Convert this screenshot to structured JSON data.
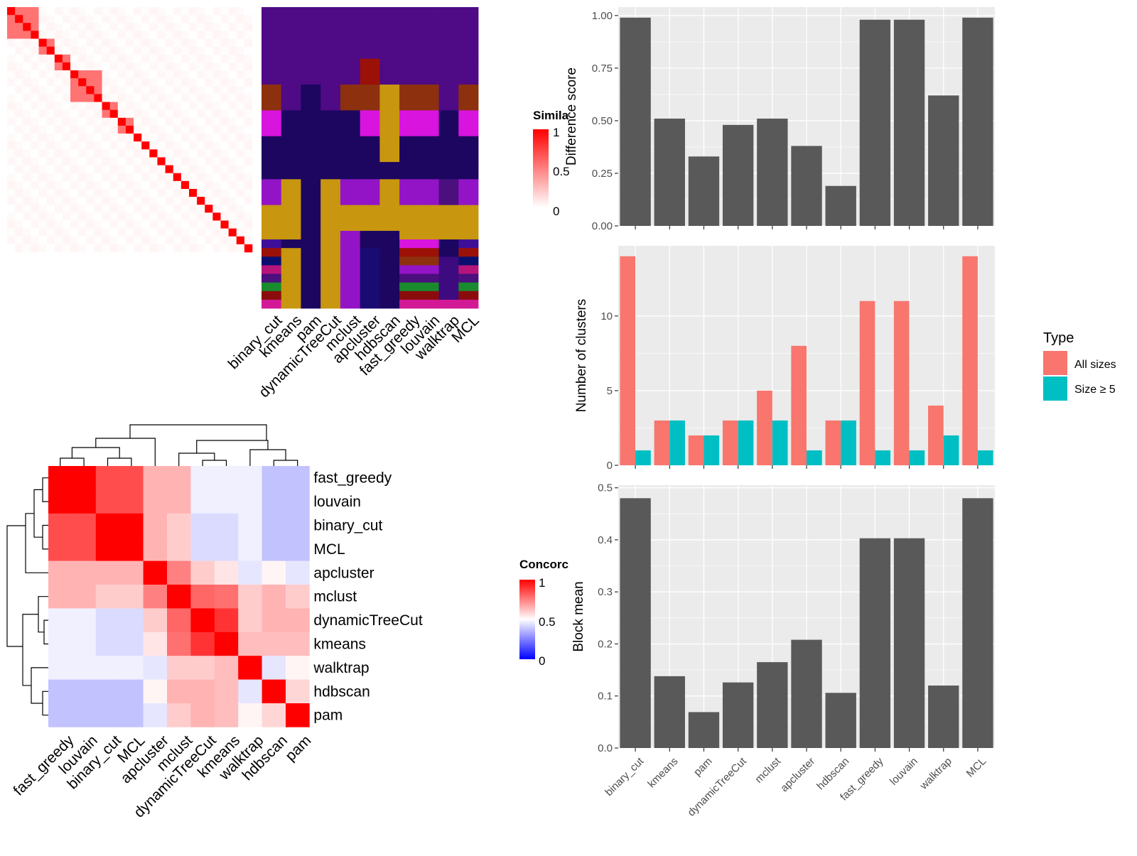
{
  "similarity_legend": {
    "title": "Simila",
    "ticks": [
      "1",
      "0.5",
      "0"
    ]
  },
  "concordance_legend": {
    "title": "Concorc",
    "ticks": [
      "1",
      "0.5",
      "0"
    ]
  },
  "type_legend": {
    "title": "Type",
    "entries": [
      "All sizes",
      "Size ≥ 5"
    ]
  },
  "colors": {
    "bar": "#595959",
    "all_sizes": "#F8766D",
    "size_ge5": "#00BFC4",
    "panel_bg": "#EBEBEB",
    "grid": "#ffffff",
    "heat_high": "#ff0000",
    "heat_mid": "#ffffff",
    "heat_low": "#0000ff"
  },
  "chart_data": [
    {
      "type": "heatmap",
      "name": "similarity",
      "n_cells": 31,
      "value_range": [
        0,
        1
      ],
      "blocks_1based": [
        [
          1,
          4
        ],
        [
          5,
          6
        ],
        [
          7,
          8
        ],
        [
          9,
          12
        ],
        [
          13,
          14
        ],
        [
          15,
          16
        ],
        [
          17,
          17
        ],
        [
          18,
          18
        ],
        [
          19,
          19
        ],
        [
          20,
          20
        ],
        [
          21,
          21
        ],
        [
          22,
          22
        ],
        [
          23,
          23
        ],
        [
          24,
          24
        ],
        [
          25,
          25
        ],
        [
          26,
          26
        ],
        [
          27,
          27
        ],
        [
          28,
          28
        ],
        [
          29,
          29
        ],
        [
          30,
          30
        ],
        [
          31,
          31
        ]
      ],
      "within_block": 0.55,
      "background": 0.04
    },
    {
      "type": "heatmap",
      "name": "cluster_assignments",
      "columns": [
        "binary_cut",
        "kmeans",
        "pam",
        "dynamicTreeCut",
        "mclust",
        "apcluster",
        "hdbscan",
        "fast_greedy",
        "louvain",
        "walktrap",
        "MCL"
      ],
      "row_groups": [
        {
          "rows": 6,
          "colors": [
            "#4f0a85",
            "#4f0a85",
            "#4f0a85",
            "#4f0a85",
            "#4f0a85",
            "#4f0a85",
            "#4f0a85",
            "#4f0a85",
            "#4f0a85",
            "#4f0a85",
            "#4f0a85"
          ]
        },
        {
          "rows": 3,
          "colors": [
            "#4f0a85",
            "#4f0a85",
            "#4f0a85",
            "#4f0a85",
            "#4f0a85",
            "#9b1108",
            "#4f0a85",
            "#4f0a85",
            "#4f0a85",
            "#4f0a85",
            "#4f0a85"
          ]
        },
        {
          "rows": 3,
          "colors": [
            "#8c300d",
            "#4f0a85",
            "#1c0660",
            "#4f0a85",
            "#8c300d",
            "#8c300d",
            "#c8960f",
            "#8c300d",
            "#8c300d",
            "#4f0a85",
            "#8c300d"
          ]
        },
        {
          "rows": 3,
          "colors": [
            "#d814de",
            "#1c0660",
            "#1c0660",
            "#1c0660",
            "#1c0660",
            "#d814de",
            "#c8960f",
            "#d814de",
            "#d814de",
            "#1c0660",
            "#d814de"
          ]
        },
        {
          "rows": 3,
          "colors": [
            "#1c0660",
            "#1c0660",
            "#1c0660",
            "#1c0660",
            "#1c0660",
            "#1c0660",
            "#c8960f",
            "#1c0660",
            "#1c0660",
            "#1c0660",
            "#1c0660"
          ]
        },
        {
          "rows": 2,
          "colors": [
            "#1c0660",
            "#1c0660",
            "#1c0660",
            "#1c0660",
            "#1c0660",
            "#1c0660",
            "#1c0660",
            "#1c0660",
            "#1c0660",
            "#1c0660",
            "#1c0660"
          ]
        },
        {
          "rows": 3,
          "colors": [
            "#9314c6",
            "#c8960f",
            "#1c0660",
            "#c8960f",
            "#9314c6",
            "#9314c6",
            "#c8960f",
            "#9314c6",
            "#9314c6",
            "#4b0f7e",
            "#9314c6"
          ]
        },
        {
          "rows": 3,
          "colors": [
            "#c8960f",
            "#c8960f",
            "#1c0660",
            "#c8960f",
            "#c8960f",
            "#c8960f",
            "#c8960f",
            "#c8960f",
            "#c8960f",
            "#c8960f",
            "#c8960f"
          ]
        },
        {
          "rows": 1,
          "colors": [
            "#c8960f",
            "#c8960f",
            "#1c0660",
            "#c8960f",
            "#9314c6",
            "#1c0660",
            "#1c0660",
            "#c8960f",
            "#c8960f",
            "#c8960f",
            "#c8960f"
          ]
        },
        {
          "rows": 1,
          "colors": [
            "#3d0f99",
            "#1c0660",
            "#1c0660",
            "#c8960f",
            "#9314c6",
            "#1c0660",
            "#1c0660",
            "#d814de",
            "#d814de",
            "#1c0660",
            "#3d0f99"
          ]
        },
        {
          "rows": 1,
          "colors": [
            "#9b1108",
            "#c8960f",
            "#1c0660",
            "#c8960f",
            "#9314c6",
            "#1a0b73",
            "#1c0660",
            "#9b1108",
            "#9b1108",
            "#1c0660",
            "#9b1108"
          ]
        },
        {
          "rows": 1,
          "colors": [
            "#0a0f6e",
            "#c8960f",
            "#1c0660",
            "#c8960f",
            "#9314c6",
            "#1a0b73",
            "#1c0660",
            "#8c300d",
            "#8c300d",
            "#3d0a80",
            "#0a0f6e"
          ]
        },
        {
          "rows": 1,
          "colors": [
            "#b5147a",
            "#c8960f",
            "#1c0660",
            "#c8960f",
            "#9314c6",
            "#1a0b73",
            "#1c0660",
            "#9314c6",
            "#9314c6",
            "#3d0a80",
            "#b5147a"
          ]
        },
        {
          "rows": 1,
          "colors": [
            "#4b0f7e",
            "#c8960f",
            "#1c0660",
            "#c8960f",
            "#9314c6",
            "#1a0b73",
            "#1c0660",
            "#4b0f7e",
            "#4b0f7e",
            "#3d0a80",
            "#4b0f7e"
          ]
        },
        {
          "rows": 1,
          "colors": [
            "#1a8a2e",
            "#c8960f",
            "#1c0660",
            "#c8960f",
            "#9314c6",
            "#1a0b73",
            "#1c0660",
            "#1a8a2e",
            "#1a8a2e",
            "#3d0a80",
            "#1a8a2e"
          ]
        },
        {
          "rows": 1,
          "colors": [
            "#8a0c0c",
            "#c8960f",
            "#1c0660",
            "#c8960f",
            "#9314c6",
            "#1a0b73",
            "#1c0660",
            "#8a0c0c",
            "#8a0c0c",
            "#3d0a80",
            "#8a0c0c"
          ]
        },
        {
          "rows": 1,
          "colors": [
            "#d21a96",
            "#c8960f",
            "#1c0660",
            "#c8960f",
            "#9314c6",
            "#1a0b73",
            "#1c0660",
            "#d21a96",
            "#d21a96",
            "#d21a96",
            "#d21a96"
          ]
        }
      ]
    },
    {
      "type": "heatmap",
      "name": "concordance",
      "col_labels": [
        "fast_greedy",
        "louvain",
        "binary_cut",
        "MCL",
        "apcluster",
        "mclust",
        "dynamicTreeCut",
        "kmeans",
        "walktrap",
        "hdbscan",
        "pam"
      ],
      "row_labels": [
        "fast_greedy",
        "louvain",
        "binary_cut",
        "MCL",
        "apcluster",
        "mclust",
        "dynamicTreeCut",
        "kmeans",
        "walktrap",
        "hdbscan",
        "pam"
      ],
      "value_range": [
        0,
        1
      ],
      "matrix": [
        [
          1,
          1,
          0.85,
          0.85,
          0.65,
          0.65,
          0.47,
          0.47,
          0.47,
          0.38,
          0.38
        ],
        [
          1,
          1,
          0.85,
          0.85,
          0.65,
          0.65,
          0.47,
          0.47,
          0.47,
          0.38,
          0.38
        ],
        [
          0.85,
          0.85,
          1,
          1,
          0.65,
          0.6,
          0.43,
          0.43,
          0.47,
          0.38,
          0.38
        ],
        [
          0.85,
          0.85,
          1,
          1,
          0.65,
          0.6,
          0.43,
          0.43,
          0.47,
          0.38,
          0.38
        ],
        [
          0.65,
          0.65,
          0.65,
          0.65,
          1,
          0.75,
          0.6,
          0.55,
          0.45,
          0.52,
          0.45
        ],
        [
          0.65,
          0.65,
          0.6,
          0.6,
          0.75,
          1,
          0.8,
          0.78,
          0.6,
          0.65,
          0.6
        ],
        [
          0.47,
          0.47,
          0.43,
          0.43,
          0.6,
          0.8,
          1,
          0.9,
          0.6,
          0.65,
          0.65
        ],
        [
          0.47,
          0.47,
          0.43,
          0.43,
          0.55,
          0.78,
          0.9,
          1,
          0.63,
          0.63,
          0.63
        ],
        [
          0.47,
          0.47,
          0.47,
          0.47,
          0.45,
          0.6,
          0.6,
          0.63,
          1,
          0.45,
          0.52
        ],
        [
          0.38,
          0.38,
          0.38,
          0.38,
          0.52,
          0.65,
          0.65,
          0.63,
          0.45,
          1,
          0.58
        ],
        [
          0.38,
          0.38,
          0.38,
          0.38,
          0.45,
          0.6,
          0.65,
          0.63,
          0.52,
          0.58,
          1
        ]
      ],
      "dendrogram": "hierarchical clustering on rows and columns"
    },
    {
      "type": "bar",
      "name": "difference_score",
      "categories": [
        "binary_cut",
        "kmeans",
        "pam",
        "dynamicTreeCut",
        "mclust",
        "apcluster",
        "hdbscan",
        "fast_greedy",
        "louvain",
        "walktrap",
        "MCL"
      ],
      "values": [
        0.99,
        0.51,
        0.33,
        0.48,
        0.51,
        0.38,
        0.19,
        0.98,
        0.98,
        0.62,
        0.99
      ],
      "ylabel": "Difference score",
      "ylim": [
        0,
        1.04
      ],
      "yticks": [
        "0.00",
        "0.25",
        "0.50",
        "0.75",
        "1.00"
      ],
      "ytick_values": [
        0,
        0.25,
        0.5,
        0.75,
        1.0
      ],
      "grid": true
    },
    {
      "type": "bar",
      "name": "number_of_clusters",
      "categories": [
        "binary_cut",
        "kmeans",
        "pam",
        "dynamicTreeCut",
        "mclust",
        "apcluster",
        "hdbscan",
        "fast_greedy",
        "louvain",
        "walktrap",
        "MCL"
      ],
      "series": [
        {
          "name": "All sizes",
          "values": [
            14,
            3,
            2,
            3,
            5,
            8,
            3,
            11,
            11,
            4,
            14
          ]
        },
        {
          "name": "Size ≥ 5",
          "values": [
            1,
            3,
            2,
            3,
            3,
            1,
            3,
            1,
            1,
            2,
            1
          ]
        }
      ],
      "ylabel": "Number of clusters",
      "ylim": [
        0,
        14.7
      ],
      "yticks": [
        "0",
        "5",
        "10"
      ],
      "ytick_values": [
        0,
        5,
        10
      ],
      "legend": "right",
      "grid": true
    },
    {
      "type": "bar",
      "name": "block_mean",
      "categories": [
        "binary_cut",
        "kmeans",
        "pam",
        "dynamicTreeCut",
        "mclust",
        "apcluster",
        "hdbscan",
        "fast_greedy",
        "louvain",
        "walktrap",
        "MCL"
      ],
      "values": [
        0.48,
        0.138,
        0.069,
        0.126,
        0.165,
        0.208,
        0.106,
        0.403,
        0.403,
        0.12,
        0.48
      ],
      "ylabel": "Block mean",
      "ylim": [
        0,
        0.505
      ],
      "yticks": [
        "0.0",
        "0.1",
        "0.2",
        "0.3",
        "0.4",
        "0.5"
      ],
      "ytick_values": [
        0,
        0.1,
        0.2,
        0.3,
        0.4,
        0.5
      ],
      "grid": true
    }
  ]
}
